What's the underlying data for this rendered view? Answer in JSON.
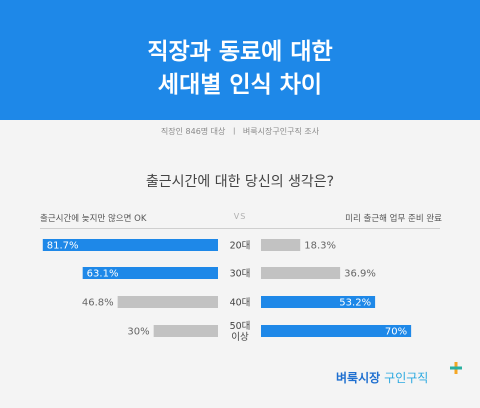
{
  "header": {
    "title": "직장과 동료에 대한\n세대별 인식 차이",
    "survey_info": "직장인 846명 대상  ㅣ  벼룩시장구인구직 조사"
  },
  "question": "출근시간에 대한 당신의 생각은?",
  "left_label": "출근시간에 늦지만 않으면 OK",
  "vs_label": "VS",
  "right_label": "미리 출근해 업무 준비 완료",
  "colors": {
    "banner": "#1e88e8",
    "highlight": "#1e88e8",
    "muted": "#c2c2c2",
    "background": "#f4f4f4"
  },
  "chart_data": {
    "type": "bar",
    "categories": [
      "20대",
      "30대",
      "40대",
      "50대 이상"
    ],
    "series": [
      {
        "name": "출근시간에 늦지만 않으면 OK",
        "values": [
          81.7,
          63.1,
          46.8,
          30
        ],
        "labels": [
          "81.7%",
          "63.1%",
          "46.8%",
          "30%"
        ]
      },
      {
        "name": "미리 출근해 업무 준비 완료",
        "values": [
          18.3,
          36.9,
          53.2,
          70
        ],
        "labels": [
          "18.3%",
          "36.9%",
          "53.2%",
          "70%"
        ]
      }
    ],
    "highlighted": [
      "left",
      "left",
      "right",
      "right"
    ],
    "xlim": [
      0,
      100
    ]
  },
  "brand": {
    "name": "벼룩시장",
    "sub": "구인구직",
    "icon": "plus-icon"
  }
}
